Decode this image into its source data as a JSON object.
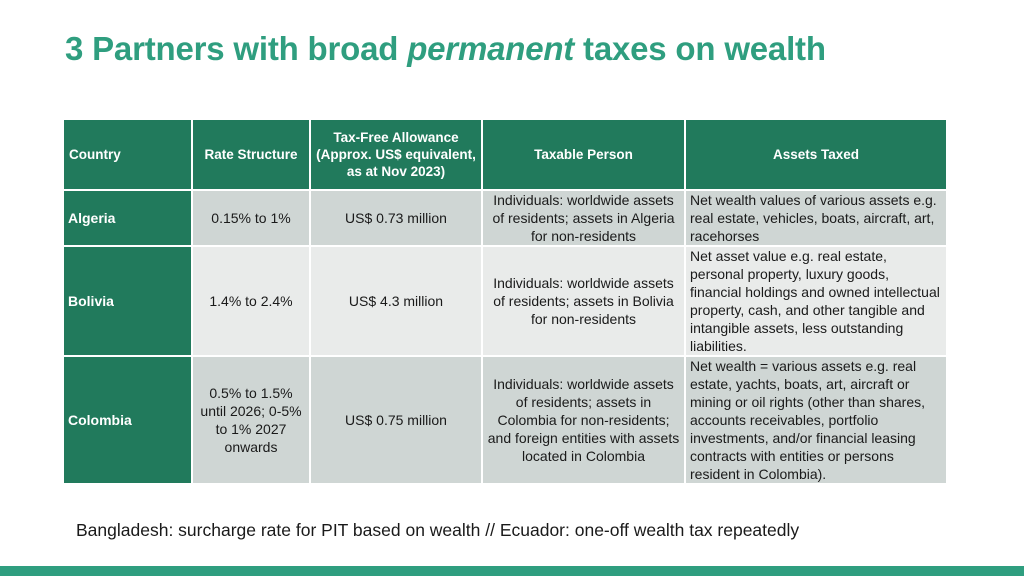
{
  "title": {
    "prefix": "3 Partners with broad ",
    "emphasis": "permanent",
    "suffix": " taxes on wealth"
  },
  "table": {
    "headers": {
      "country": "Country",
      "rate": "Rate Structure",
      "allowance": "Tax-Free Allowance (Approx. US$ equivalent, as at Nov 2023)",
      "person": "Taxable Person",
      "assets": "Assets Taxed"
    },
    "rows": [
      {
        "country": "Algeria",
        "rate": "0.15% to 1%",
        "allowance": "US$ 0.73 million",
        "person": "Individuals: worldwide assets of residents; assets in Algeria for non-residents",
        "assets": "Net wealth values of various assets e.g. real estate, vehicles, boats, aircraft, art, racehorses"
      },
      {
        "country": "Bolivia",
        "rate": "1.4% to 2.4%",
        "allowance": "US$ 4.3 million",
        "person": "Individuals: worldwide assets of residents; assets in Bolivia for non-residents",
        "assets": "Net asset value e.g. real estate, personal property, luxury goods, financial holdings and owned intellectual property, cash, and other tangible and intangible assets, less outstanding liabilities."
      },
      {
        "country": "Colombia",
        "rate": "0.5% to 1.5% until 2026; 0-5% to 1% 2027 onwards",
        "allowance": "US$ 0.75 million",
        "person": "Individuals: worldwide assets of residents; assets in Colombia for non-residents; and foreign entities with assets located in Colombia",
        "assets": "Net wealth = various assets e.g. real estate, yachts, boats, art, aircraft or mining or oil rights (other than shares, accounts receivables, portfolio investments, and/or financial leasing contracts with entities or persons resident in Colombia)."
      }
    ]
  },
  "footnote": "Bangladesh: surcharge rate for PIT based on wealth // Ecuador: one-off wealth tax repeatedly",
  "colors": {
    "title": "#2f9e7f",
    "header_bg": "#217a5c",
    "row_dark": "#cfd6d4",
    "row_light": "#e9ebea",
    "bottom_bar": "#2f9e7f"
  }
}
